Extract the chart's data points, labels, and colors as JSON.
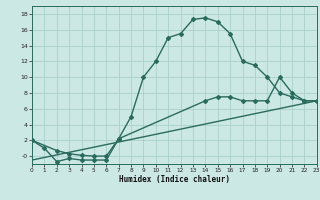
{
  "xlabel": "Humidex (Indice chaleur)",
  "bg_color": "#cce8e4",
  "grid_color": "#aacfcb",
  "line_color": "#2a6b5e",
  "xlim": [
    0,
    23
  ],
  "ylim": [
    -1,
    19
  ],
  "xticks": [
    0,
    1,
    2,
    3,
    4,
    5,
    6,
    7,
    8,
    9,
    10,
    11,
    12,
    13,
    14,
    15,
    16,
    17,
    18,
    19,
    20,
    21,
    22,
    23
  ],
  "yticks": [
    0,
    2,
    4,
    6,
    8,
    10,
    12,
    14,
    16,
    18
  ],
  "ytick_labels": [
    "-0",
    "2",
    "4",
    "6",
    "8",
    "10",
    "12",
    "14",
    "16",
    "18"
  ],
  "line1_x": [
    0,
    1,
    2,
    3,
    4,
    5,
    6,
    7,
    8,
    9,
    10,
    11,
    12,
    13,
    14,
    15,
    16,
    17,
    18,
    19,
    20,
    21,
    22,
    23
  ],
  "line1_y": [
    2,
    1,
    -0.7,
    -0.3,
    -0.5,
    -0.5,
    -0.5,
    2.2,
    5,
    10,
    12,
    15,
    15.5,
    17.3,
    17.5,
    17,
    15.5,
    12,
    11.5,
    10,
    8,
    7.5,
    7,
    7
  ],
  "line2_x": [
    0,
    2,
    3,
    4,
    5,
    6,
    7,
    14,
    15,
    16,
    17,
    18,
    19,
    20,
    21,
    22,
    23
  ],
  "line2_y": [
    2,
    0.7,
    0.3,
    0.1,
    0.0,
    0.0,
    2.2,
    7,
    7.5,
    7.5,
    7.0,
    7.0,
    7.0,
    10,
    8,
    7,
    7
  ],
  "line3_x": [
    0,
    23
  ],
  "line3_y": [
    -0.5,
    7
  ]
}
